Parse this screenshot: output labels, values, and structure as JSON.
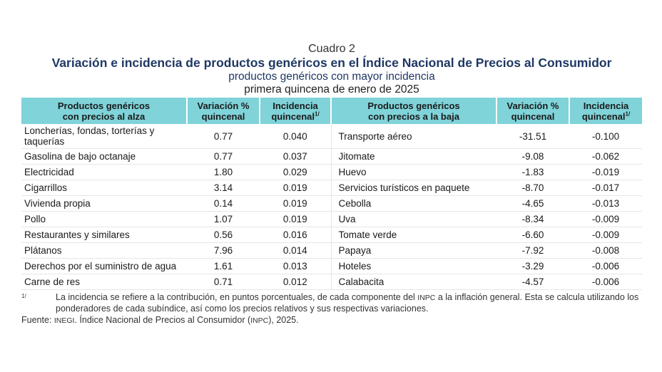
{
  "header": {
    "cuadro": "Cuadro 2",
    "title": "Variación e incidencia de productos genéricos en el Índice Nacional de Precios al Consumidor",
    "subtitle": "productos genéricos con mayor incidencia",
    "period": "primera quincena de enero de 2025"
  },
  "table": {
    "columns": {
      "up_product_l1": "Productos genéricos",
      "up_product_l2": "con precios al alza",
      "up_var_l1": "Variación %",
      "up_var_l2": "quincenal",
      "up_inc_l1": "Incidencia",
      "up_inc_l2": "quincenal",
      "down_product_l1": "Productos genéricos",
      "down_product_l2": "con precios a la baja",
      "down_var_l1": "Variación %",
      "down_var_l2": "quincenal",
      "down_inc_l1": "Incidencia",
      "down_inc_l2": "quincenal",
      "footnote_mark": "1/"
    },
    "rows": [
      {
        "up_name": "Loncherías, fondas, torterías y taquerías",
        "up_var": "0.77",
        "up_inc": "0.040",
        "down_name": "Transporte aéreo",
        "down_var": "-31.51",
        "down_inc": "-0.100"
      },
      {
        "up_name": "Gasolina de bajo octanaje",
        "up_var": "0.77",
        "up_inc": "0.037",
        "down_name": "Jitomate",
        "down_var": "-9.08",
        "down_inc": "-0.062"
      },
      {
        "up_name": "Electricidad",
        "up_var": "1.80",
        "up_inc": "0.029",
        "down_name": "Huevo",
        "down_var": "-1.83",
        "down_inc": "-0.019"
      },
      {
        "up_name": "Cigarrillos",
        "up_var": "3.14",
        "up_inc": "0.019",
        "down_name": "Servicios turísticos en paquete",
        "down_var": "-8.70",
        "down_inc": "-0.017"
      },
      {
        "up_name": "Vivienda propia",
        "up_var": "0.14",
        "up_inc": "0.019",
        "down_name": "Cebolla",
        "down_var": "-4.65",
        "down_inc": "-0.013"
      },
      {
        "up_name": "Pollo",
        "up_var": "1.07",
        "up_inc": "0.019",
        "down_name": "Uva",
        "down_var": "-8.34",
        "down_inc": "-0.009"
      },
      {
        "up_name": "Restaurantes y similares",
        "up_var": "0.56",
        "up_inc": "0.016",
        "down_name": "Tomate verde",
        "down_var": "-6.60",
        "down_inc": "-0.009"
      },
      {
        "up_name": "Plátanos",
        "up_var": "7.96",
        "up_inc": "0.014",
        "down_name": "Papaya",
        "down_var": "-7.92",
        "down_inc": "-0.008"
      },
      {
        "up_name": "Derechos por el suministro de agua",
        "up_var": "1.61",
        "up_inc": "0.013",
        "down_name": "Hoteles",
        "down_var": "-3.29",
        "down_inc": "-0.006"
      },
      {
        "up_name": "Carne de res",
        "up_var": "0.71",
        "up_inc": "0.012",
        "down_name": "Calabacita",
        "down_var": "-4.57",
        "down_inc": "-0.006"
      }
    ]
  },
  "footnote": {
    "mark": "1/",
    "text_a": "La incidencia se refiere a la contribución, en puntos porcentuales, de cada componente del ",
    "abbr_inpc": "INPC",
    "text_b": " a la inflación general. Esta se calcula utilizando los ponderadores de cada subíndice, así como los precios relativos y sus respectivas variaciones."
  },
  "source": {
    "label": "Fuente: ",
    "org": "INEGI",
    "text_a": ". Índice Nacional de Precios al Consumidor (",
    "abbr": "INPC",
    "text_b": "), 2025."
  }
}
